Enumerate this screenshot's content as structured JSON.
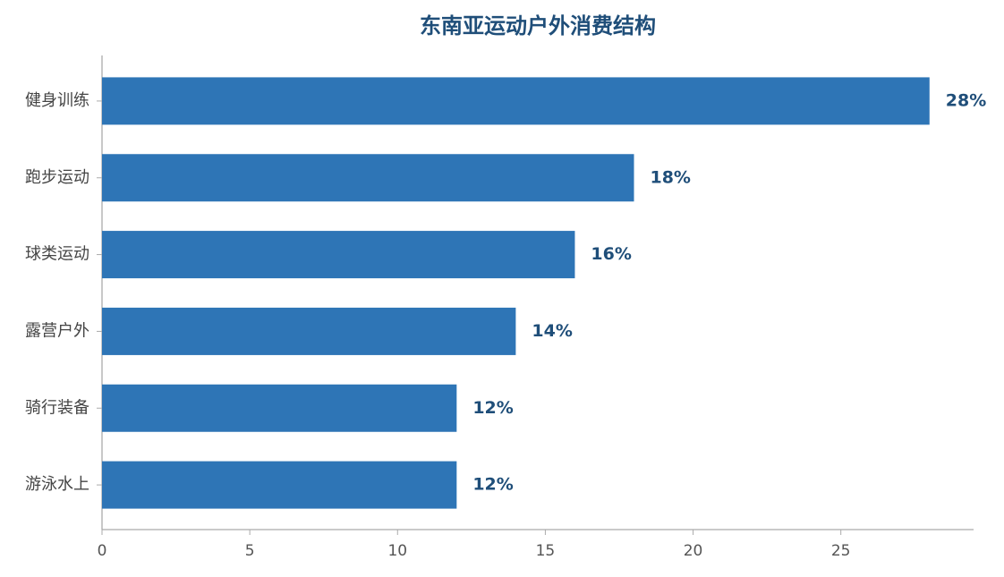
{
  "chart_data": {
    "type": "bar",
    "orientation": "horizontal",
    "title": "东南亚运动户外消费结构",
    "categories": [
      "健身训练",
      "跑步运动",
      "球类运动",
      "露营户外",
      "骑行装备",
      "游泳水上"
    ],
    "values": [
      28,
      18,
      16,
      14,
      12,
      12
    ],
    "value_labels": [
      "28%",
      "18%",
      "16%",
      "14%",
      "12%",
      "12%"
    ],
    "color": "#2e75b6",
    "xlim": [
      0,
      29.4
    ],
    "xticks": [
      0,
      5,
      10,
      15,
      20,
      25
    ],
    "grid": false
  }
}
